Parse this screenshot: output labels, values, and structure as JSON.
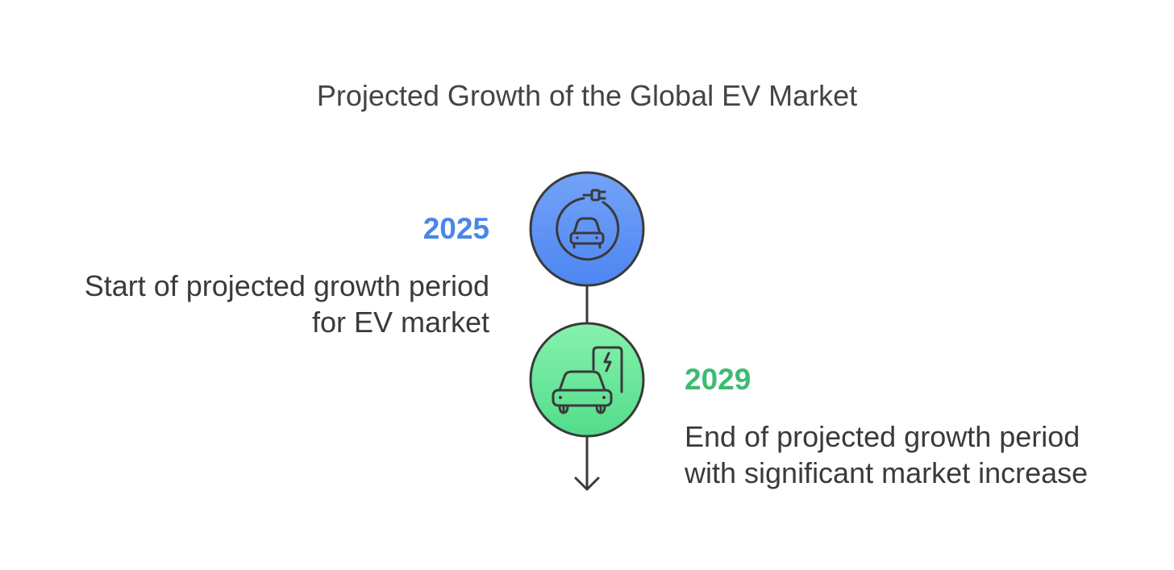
{
  "title": "Projected Growth of the Global EV Market",
  "milestones": [
    {
      "year": "2025",
      "description_line1": "Start of projected growth period",
      "description_line2": "for EV market",
      "icon": "plug-car-icon",
      "color": "#4a86e8",
      "circle_fill_top": "#74a3f7",
      "circle_fill_bottom": "#4d86f2"
    },
    {
      "year": "2029",
      "description_line1": "End of projected growth period",
      "description_line2": "with significant market increase",
      "icon": "car-charging-station-icon",
      "color": "#3dbb73",
      "circle_fill_top": "#86f2ad",
      "circle_fill_bottom": "#52dc8b"
    }
  ],
  "stroke_color": "#3a3a3a"
}
